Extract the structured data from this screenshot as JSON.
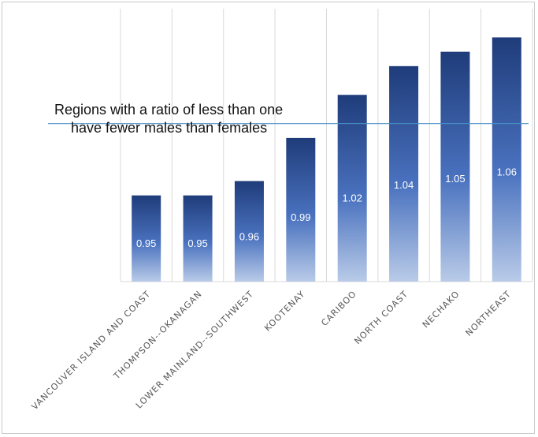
{
  "chart_data": {
    "type": "bar",
    "categories": [
      "VANCOUVER ISLAND AND COAST",
      "THOMPSON--OKANAGAN",
      "LOWER MAINLAND--SOUTHWEST",
      "KOOTENAY",
      "CARIBOO",
      "NORTH COAST",
      "NECHAKO",
      "NORTHEAST"
    ],
    "values": [
      0.95,
      0.95,
      0.96,
      0.99,
      1.02,
      1.04,
      1.05,
      1.06
    ],
    "data_labels": [
      "0.95",
      "0.95",
      "0.96",
      "0.99",
      "1.02",
      "1.04",
      "1.05",
      "1.06"
    ],
    "reference_line": 1.0,
    "annotation": [
      "Regions with a ratio of less than one",
      "have fewer males than females"
    ],
    "ylim": [
      0.89,
      1.08
    ],
    "grid": "vertical",
    "colors": {
      "bar_top": "#1f3c7a",
      "bar_mid": "#4a72bf",
      "bar_bottom": "#b9cbe8",
      "reference_line": "#4a90c8",
      "grid": "#d9d9d9"
    }
  }
}
